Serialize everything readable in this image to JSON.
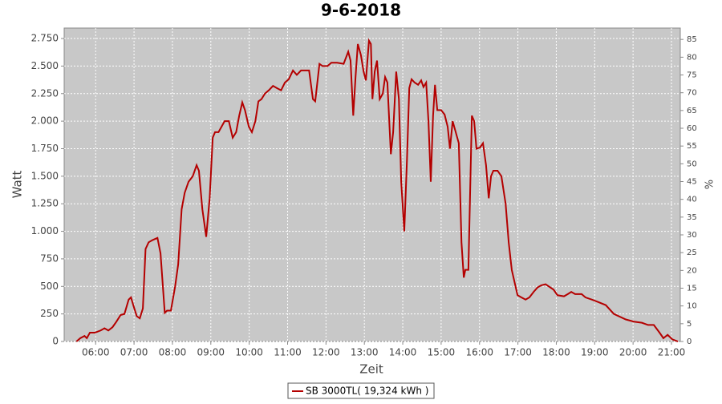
{
  "chart_data": {
    "type": "line",
    "title": "9-6-2018",
    "xlabel": "Zeit",
    "ylabel": "Watt",
    "y2label": "%",
    "x": [
      5.5,
      5.6,
      5.71,
      5.77,
      5.85,
      5.98,
      6.13,
      6.23,
      6.33,
      6.44,
      6.54,
      6.65,
      6.75,
      6.86,
      6.92,
      6.98,
      7.07,
      7.15,
      7.23,
      7.3,
      7.38,
      7.48,
      7.61,
      7.69,
      7.8,
      7.86,
      7.96,
      8.07,
      8.15,
      8.24,
      8.32,
      8.42,
      8.53,
      8.63,
      8.69,
      8.78,
      8.88,
      8.97,
      9.05,
      9.11,
      9.2,
      9.28,
      9.36,
      9.47,
      9.57,
      9.66,
      9.74,
      9.82,
      9.89,
      9.99,
      10.07,
      10.16,
      10.24,
      10.32,
      10.41,
      10.51,
      10.62,
      10.72,
      10.83,
      10.93,
      11.03,
      11.14,
      11.24,
      11.35,
      11.56,
      11.66,
      11.72,
      11.83,
      11.91,
      12.04,
      12.14,
      12.29,
      12.46,
      12.58,
      12.64,
      12.71,
      12.77,
      12.83,
      12.91,
      12.98,
      13.04,
      13.12,
      13.17,
      13.21,
      13.27,
      13.33,
      13.4,
      13.48,
      13.54,
      13.6,
      13.69,
      13.75,
      13.83,
      13.9,
      13.96,
      14.04,
      14.11,
      14.17,
      14.23,
      14.31,
      14.4,
      14.48,
      14.54,
      14.61,
      14.67,
      14.73,
      14.79,
      14.84,
      14.9,
      15.0,
      15.09,
      15.17,
      15.23,
      15.3,
      15.38,
      15.46,
      15.53,
      15.59,
      15.63,
      15.71,
      15.8,
      15.86,
      15.92,
      16.01,
      16.09,
      16.17,
      16.24,
      16.3,
      16.36,
      16.47,
      16.57,
      16.68,
      16.76,
      16.84,
      16.99,
      17.09,
      17.2,
      17.3,
      17.41,
      17.51,
      17.61,
      17.72,
      17.93,
      18.03,
      18.2,
      18.3,
      18.39,
      18.49,
      18.66,
      18.76,
      18.93,
      19.08,
      19.29,
      19.5,
      19.81,
      20.02,
      20.23,
      20.39,
      20.54,
      20.69,
      20.79,
      20.9,
      21.02,
      21.17
    ],
    "series": [
      {
        "name": "SB 3000TL( 19,324 kWh )",
        "color": "#b40000",
        "values": [
          0,
          30,
          50,
          30,
          80,
          80,
          100,
          120,
          100,
          130,
          180,
          240,
          250,
          380,
          400,
          330,
          230,
          210,
          300,
          840,
          900,
          920,
          940,
          800,
          260,
          280,
          280,
          500,
          700,
          1200,
          1350,
          1450,
          1500,
          1600,
          1550,
          1200,
          950,
          1300,
          1850,
          1900,
          1900,
          1950,
          2000,
          2000,
          1850,
          1900,
          2050,
          2170,
          2100,
          1950,
          1900,
          2000,
          2180,
          2200,
          2250,
          2280,
          2320,
          2300,
          2280,
          2350,
          2380,
          2460,
          2420,
          2460,
          2460,
          2200,
          2180,
          2520,
          2500,
          2500,
          2530,
          2530,
          2520,
          2630,
          2550,
          2050,
          2400,
          2700,
          2600,
          2450,
          2370,
          2730,
          2700,
          2200,
          2450,
          2550,
          2200,
          2250,
          2400,
          2350,
          1700,
          1900,
          2450,
          2200,
          1450,
          1000,
          1650,
          2300,
          2380,
          2350,
          2330,
          2370,
          2310,
          2350,
          2000,
          1450,
          2050,
          2330,
          2100,
          2100,
          2060,
          1950,
          1750,
          2000,
          1900,
          1800,
          900,
          580,
          650,
          650,
          2050,
          2000,
          1750,
          1760,
          1800,
          1600,
          1300,
          1500,
          1550,
          1550,
          1500,
          1250,
          900,
          650,
          420,
          400,
          380,
          400,
          450,
          490,
          510,
          520,
          470,
          420,
          410,
          430,
          450,
          430,
          430,
          400,
          380,
          360,
          330,
          250,
          200,
          180,
          170,
          150,
          150,
          80,
          30,
          60,
          20,
          0
        ]
      }
    ],
    "xlim": [
      5.18,
      21.23
    ],
    "xticks": [
      {
        "value": 6,
        "label": "06:00"
      },
      {
        "value": 7,
        "label": "07:00"
      },
      {
        "value": 8,
        "label": "08:00"
      },
      {
        "value": 9,
        "label": "09:00"
      },
      {
        "value": 10,
        "label": "10:00"
      },
      {
        "value": 11,
        "label": "11:00"
      },
      {
        "value": 12,
        "label": "12:00"
      },
      {
        "value": 13,
        "label": "13:00"
      },
      {
        "value": 14,
        "label": "14:00"
      },
      {
        "value": 15,
        "label": "15:00"
      },
      {
        "value": 16,
        "label": "16:00"
      },
      {
        "value": 17,
        "label": "17:00"
      },
      {
        "value": 18,
        "label": "18:00"
      },
      {
        "value": 19,
        "label": "19:00"
      },
      {
        "value": 20,
        "label": "20:00"
      },
      {
        "value": 21,
        "label": "21:00"
      }
    ],
    "ylim": [
      0,
      2845
    ],
    "yticks": [
      0,
      250,
      500,
      750,
      {
        "value": 1000,
        "label": "1.000"
      },
      {
        "value": 1250,
        "label": "1.250"
      },
      {
        "value": 1500,
        "label": "1.500"
      },
      {
        "value": 1750,
        "label": "1.750"
      },
      {
        "value": 2000,
        "label": "2.000"
      },
      {
        "value": 2250,
        "label": "2.250"
      },
      {
        "value": 2500,
        "label": "2.500"
      },
      {
        "value": 2750,
        "label": "2.750"
      }
    ],
    "y2lim": [
      0,
      88.2
    ],
    "y2ticks": [
      0,
      5,
      10,
      15,
      20,
      25,
      30,
      35,
      40,
      45,
      50,
      55,
      60,
      65,
      70,
      75,
      80,
      85
    ],
    "grid": true,
    "legend": "bottom"
  }
}
